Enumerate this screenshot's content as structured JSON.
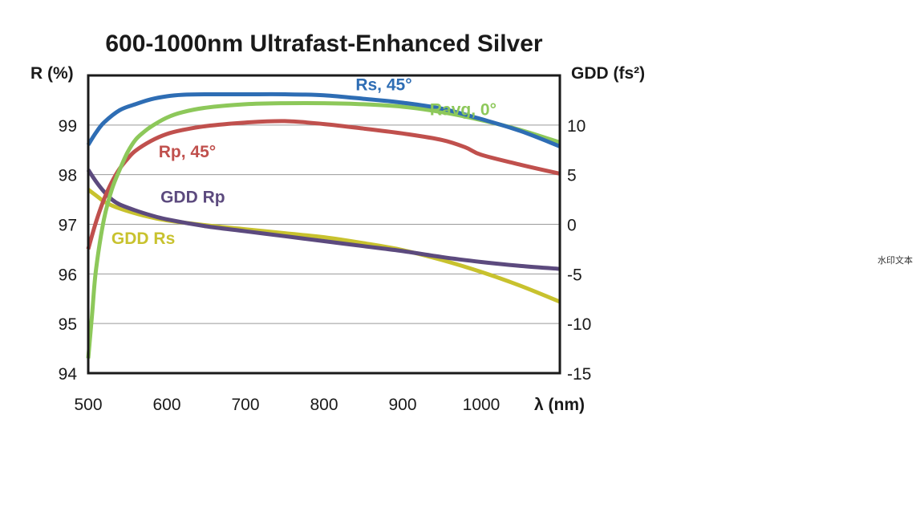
{
  "chart_data": {
    "type": "line",
    "title": "600-1000nm Ultrafast-Enhanced Silver",
    "xlabel": "λ (nm)",
    "ylabel": "R (%)",
    "y2label": "GDD (fs²)",
    "xlim": [
      500,
      1100
    ],
    "ylim": [
      94,
      100
    ],
    "y2lim": [
      -15,
      15
    ],
    "x_ticks": [
      500,
      600,
      700,
      800,
      900,
      1000
    ],
    "y_ticks": [
      94,
      95,
      96,
      97,
      98,
      99
    ],
    "y2_ticks": [
      -15,
      -10,
      -5,
      0,
      5,
      10
    ],
    "grid": true,
    "series": [
      {
        "name": "Rs, 45°",
        "axis": "left",
        "color": "#2e6db4",
        "x": [
          500,
          510,
          520,
          540,
          560,
          580,
          600,
          620,
          650,
          700,
          750,
          800,
          850,
          900,
          950,
          1000,
          1050,
          1100
        ],
        "y": [
          98.6,
          98.85,
          99.05,
          99.3,
          99.42,
          99.52,
          99.58,
          99.61,
          99.62,
          99.62,
          99.62,
          99.6,
          99.53,
          99.45,
          99.33,
          99.12,
          98.88,
          98.57
        ]
      },
      {
        "name": "Ravg, 0°",
        "axis": "left",
        "color": "#8dc85a",
        "x": [
          500,
          505,
          510,
          520,
          530,
          540,
          550,
          560,
          570,
          580,
          600,
          620,
          650,
          700,
          750,
          800,
          850,
          900,
          950,
          1000,
          1050,
          1100
        ],
        "y": [
          94.3,
          95.2,
          96.1,
          97.1,
          97.7,
          98.1,
          98.45,
          98.7,
          98.85,
          98.97,
          99.15,
          99.26,
          99.35,
          99.42,
          99.44,
          99.44,
          99.42,
          99.37,
          99.26,
          99.1,
          98.9,
          98.65
        ]
      },
      {
        "name": "Rp, 45°",
        "axis": "left",
        "color": "#c0504d",
        "x": [
          500,
          510,
          520,
          530,
          540,
          550,
          560,
          580,
          600,
          620,
          650,
          700,
          750,
          800,
          850,
          900,
          950,
          980,
          1000,
          1050,
          1100
        ],
        "y": [
          96.5,
          97.05,
          97.5,
          97.85,
          98.12,
          98.32,
          98.48,
          98.68,
          98.82,
          98.9,
          98.98,
          99.05,
          99.08,
          99.02,
          98.93,
          98.83,
          98.7,
          98.55,
          98.4,
          98.2,
          98.02
        ]
      },
      {
        "name": "GDD Rp",
        "axis": "right",
        "color": "#5c4a7e",
        "x": [
          500,
          510,
          520,
          530,
          540,
          560,
          580,
          600,
          650,
          700,
          750,
          800,
          850,
          900,
          950,
          1000,
          1050,
          1100
        ],
        "y": [
          5.5,
          4.3,
          3.3,
          2.5,
          2.0,
          1.4,
          0.9,
          0.5,
          -0.2,
          -0.7,
          -1.2,
          -1.7,
          -2.2,
          -2.7,
          -3.3,
          -3.8,
          -4.2,
          -4.5
        ]
      },
      {
        "name": "GDD Rs",
        "axis": "right",
        "color": "#c8c22e",
        "x": [
          500,
          510,
          520,
          530,
          540,
          560,
          580,
          600,
          650,
          700,
          750,
          800,
          850,
          900,
          950,
          1000,
          1050,
          1100
        ],
        "y": [
          3.5,
          2.9,
          2.3,
          1.9,
          1.6,
          1.1,
          0.7,
          0.4,
          -0.1,
          -0.5,
          -0.9,
          -1.3,
          -1.9,
          -2.6,
          -3.6,
          -4.8,
          -6.2,
          -7.8
        ]
      }
    ]
  },
  "watermark": "水印文本"
}
